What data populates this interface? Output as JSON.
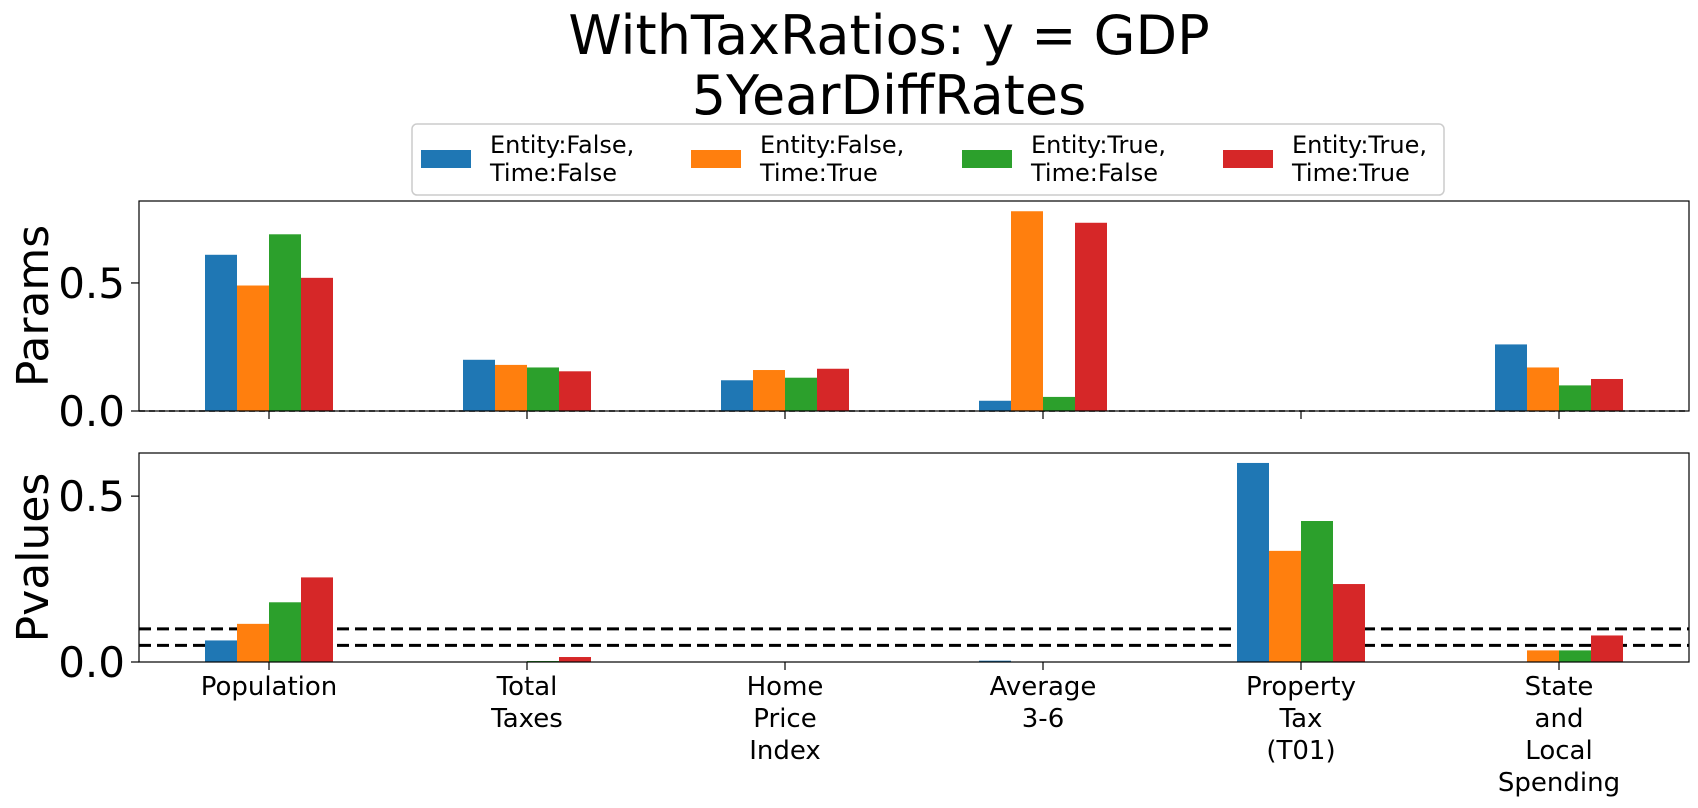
{
  "chart_data": {
    "type": "bar",
    "title": [
      "WithTaxRatios: y = GDP",
      "5YearDiffRates"
    ],
    "categories": [
      [
        "Population"
      ],
      [
        "Total",
        "Taxes"
      ],
      [
        "Home",
        "Price",
        "Index"
      ],
      [
        "Average",
        "3-6"
      ],
      [
        "Property",
        "Tax",
        "(T01)"
      ],
      [
        "State",
        "and",
        "Local",
        "Spending"
      ]
    ],
    "legend": {
      "placement": "top-center",
      "entries": [
        {
          "line1": "Entity:False,",
          "line2": "Time:False",
          "color": "#1f77b4"
        },
        {
          "line1": "Entity:False,",
          "line2": "Time:True",
          "color": "#ff7f0e"
        },
        {
          "line1": "Entity:True,",
          "line2": "Time:False",
          "color": "#2ca02c"
        },
        {
          "line1": "Entity:True,",
          "line2": "Time:True",
          "color": "#d62728"
        }
      ]
    },
    "panels": [
      {
        "ylabel": "Params",
        "ylim": [
          0,
          0.82
        ],
        "yticks": [
          0.0,
          0.5
        ],
        "ytick_labels": [
          "0.0",
          "0.5"
        ],
        "reference_lines": [
          0.0
        ],
        "series": [
          {
            "values": [
              0.61,
              0.2,
              0.12,
              0.04,
              0.0,
              0.26
            ]
          },
          {
            "values": [
              0.49,
              0.18,
              0.16,
              0.78,
              0.0,
              0.17
            ]
          },
          {
            "values": [
              0.69,
              0.17,
              0.13,
              0.055,
              0.0,
              0.1
            ]
          },
          {
            "values": [
              0.52,
              0.155,
              0.165,
              0.735,
              0.0,
              0.125
            ]
          }
        ]
      },
      {
        "ylabel": "Pvalues",
        "ylim": [
          0,
          0.63
        ],
        "yticks": [
          0.0,
          0.5
        ],
        "ytick_labels": [
          "0.0",
          "0.5"
        ],
        "reference_lines": [
          0.05,
          0.1
        ],
        "series": [
          {
            "values": [
              0.065,
              0.0,
              0.0,
              0.004,
              0.6,
              0.0
            ]
          },
          {
            "values": [
              0.115,
              0.0,
              0.0,
              0.0,
              0.335,
              0.035
            ]
          },
          {
            "values": [
              0.18,
              0.003,
              0.0,
              0.0,
              0.425,
              0.035
            ]
          },
          {
            "values": [
              0.255,
              0.015,
              0.0,
              0.0,
              0.235,
              0.08
            ]
          }
        ]
      }
    ]
  }
}
